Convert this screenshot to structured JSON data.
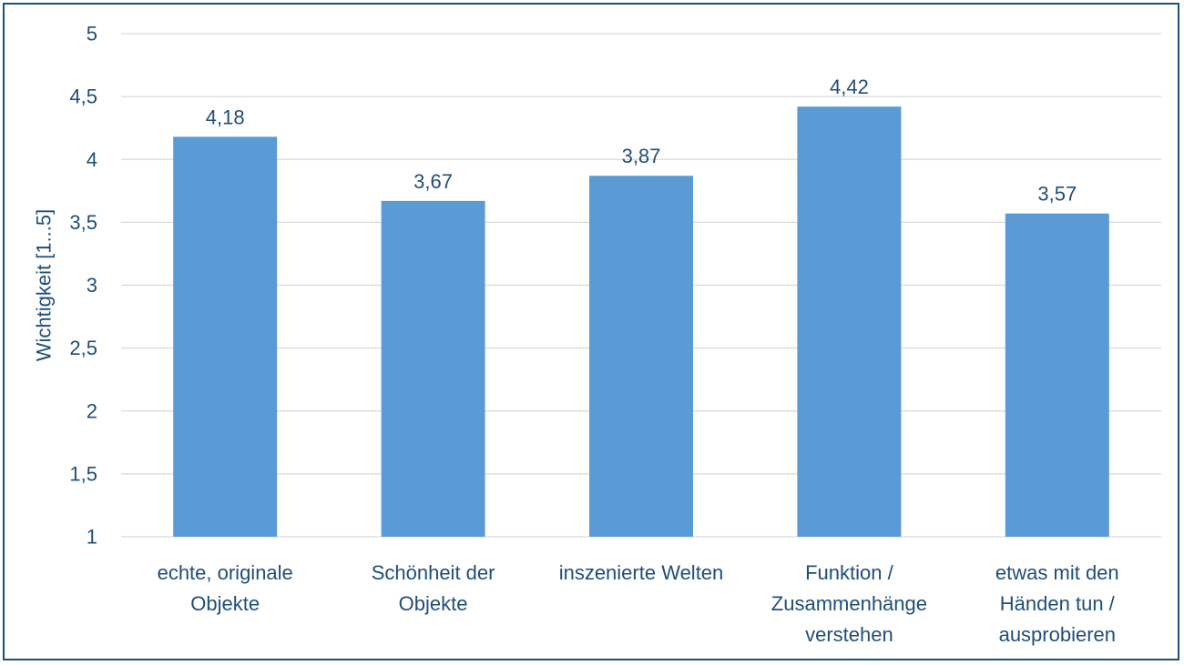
{
  "chart_data": {
    "type": "bar",
    "title": "",
    "xlabel": "",
    "ylabel": "Wichtigkeit [1...5]",
    "categories": [
      [
        "echte, originale",
        "Objekte"
      ],
      [
        "Schönheit der",
        "Objekte"
      ],
      [
        "inszenierte Welten"
      ],
      [
        "Funktion /",
        "Zusammenhänge",
        "verstehen"
      ],
      [
        "etwas mit den",
        "Händen tun /",
        "ausprobieren"
      ]
    ],
    "values": [
      4.18,
      3.67,
      3.87,
      4.42,
      3.57
    ],
    "value_labels": [
      "4,18",
      "3,67",
      "3,87",
      "4,42",
      "3,57"
    ],
    "ylim": [
      1,
      5
    ],
    "y_ticks": [
      1,
      1.5,
      2,
      2.5,
      3,
      3.5,
      4,
      4.5,
      5
    ],
    "y_tick_labels": [
      "1",
      "1,5",
      "2",
      "2,5",
      "3",
      "3,5",
      "4",
      "4,5",
      "5"
    ],
    "grid": true,
    "legend": "none",
    "colors": {
      "bar": "#5b9bd5",
      "text": "#1f4e79",
      "grid": "#d9d9d9",
      "frame": "#1f4e79"
    }
  }
}
